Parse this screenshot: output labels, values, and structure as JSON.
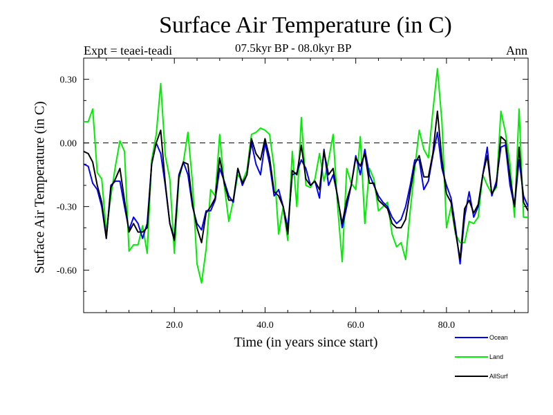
{
  "chart_data": {
    "type": "line",
    "title": "Surface Air Temperature (in C)",
    "subtitle": "07.5kyr BP - 08.0kyr BP",
    "expt_label": "Expt = teaei-teadi",
    "period_label": "Ann",
    "xlabel": "Time (in years since start)",
    "ylabel": "Surface Air Temperature (in C)",
    "xlim": [
      0,
      98
    ],
    "ylim": [
      -0.8,
      0.4
    ],
    "xticks": [
      20,
      40,
      60,
      80
    ],
    "xtick_labels": [
      "20.0",
      "40.0",
      "60.0",
      "80.0"
    ],
    "yticks": [
      0.3,
      0.0,
      -0.3,
      -0.6
    ],
    "ytick_labels": [
      "0.30",
      "0.00",
      "-0.30",
      "-0.60"
    ],
    "zero_line": 0.0,
    "x": [
      0,
      1,
      2,
      3,
      4,
      5,
      6,
      7,
      8,
      9,
      10,
      11,
      12,
      13,
      14,
      15,
      16,
      17,
      18,
      19,
      20,
      21,
      22,
      23,
      24,
      25,
      26,
      27,
      28,
      29,
      30,
      31,
      32,
      33,
      34,
      35,
      36,
      37,
      38,
      39,
      40,
      41,
      42,
      43,
      44,
      45,
      46,
      47,
      48,
      49,
      50,
      51,
      52,
      53,
      54,
      55,
      56,
      57,
      58,
      59,
      60,
      61,
      62,
      63,
      64,
      65,
      66,
      67,
      68,
      69,
      70,
      71,
      72,
      73,
      74,
      75,
      76,
      77,
      78,
      79,
      80,
      81,
      82,
      83,
      84,
      85,
      86,
      87,
      88,
      89,
      90,
      91,
      92,
      93,
      94,
      95,
      96,
      97,
      98
    ],
    "series": [
      {
        "name": "Ocean",
        "color": "#0000ff",
        "values": [
          -0.1,
          -0.11,
          -0.19,
          -0.22,
          -0.3,
          -0.45,
          -0.2,
          -0.18,
          -0.18,
          -0.3,
          -0.41,
          -0.35,
          -0.38,
          -0.45,
          -0.38,
          -0.1,
          0.0,
          -0.05,
          -0.2,
          -0.38,
          -0.45,
          -0.15,
          -0.09,
          -0.15,
          -0.3,
          -0.38,
          -0.41,
          -0.32,
          -0.32,
          -0.27,
          -0.12,
          -0.18,
          -0.25,
          -0.28,
          -0.12,
          -0.2,
          -0.15,
          0.0,
          -0.1,
          -0.15,
          0.0,
          -0.1,
          -0.25,
          -0.22,
          -0.3,
          -0.4,
          -0.15,
          -0.14,
          -0.08,
          -0.12,
          -0.2,
          -0.18,
          -0.26,
          -0.03,
          -0.2,
          -0.15,
          -0.25,
          -0.4,
          -0.3,
          -0.2,
          -0.06,
          -0.15,
          -0.03,
          -0.15,
          -0.2,
          -0.25,
          -0.28,
          -0.3,
          -0.35,
          -0.38,
          -0.36,
          -0.3,
          -0.2,
          -0.08,
          -0.08,
          -0.22,
          -0.18,
          -0.06,
          0.05,
          -0.12,
          -0.2,
          -0.26,
          -0.4,
          -0.57,
          -0.35,
          -0.23,
          -0.35,
          -0.3,
          -0.15,
          -0.02,
          -0.25,
          -0.18,
          -0.02,
          -0.01,
          -0.2,
          -0.3,
          -0.08,
          -0.25,
          -0.3
        ]
      },
      {
        "name": "Land",
        "color": "#00ee00",
        "values": [
          0.1,
          0.1,
          0.16,
          -0.14,
          -0.17,
          -0.42,
          -0.25,
          -0.11,
          0.01,
          -0.04,
          -0.51,
          -0.48,
          -0.48,
          -0.39,
          -0.52,
          -0.08,
          0.04,
          0.28,
          -0.06,
          -0.17,
          -0.52,
          -0.17,
          -0.09,
          0.05,
          -0.19,
          -0.57,
          -0.66,
          -0.5,
          -0.22,
          -0.25,
          0.04,
          -0.2,
          -0.37,
          -0.27,
          -0.15,
          -0.18,
          -0.13,
          0.04,
          0.05,
          0.07,
          0.06,
          0.04,
          -0.12,
          -0.43,
          -0.3,
          -0.46,
          -0.04,
          -0.3,
          0.12,
          -0.2,
          -0.21,
          -0.17,
          -0.05,
          -0.18,
          -0.08,
          0.04,
          -0.3,
          -0.56,
          -0.12,
          -0.19,
          -0.22,
          0.03,
          -0.38,
          -0.12,
          -0.17,
          -0.32,
          -0.3,
          -0.28,
          -0.43,
          -0.49,
          -0.47,
          -0.55,
          -0.32,
          -0.12,
          0.06,
          -0.03,
          -0.07,
          0.15,
          0.35,
          0.1,
          -0.4,
          -0.3,
          -0.43,
          -0.47,
          -0.47,
          -0.37,
          -0.38,
          -0.35,
          -0.15,
          -0.2,
          -0.24,
          -0.21,
          0.15,
          0.05,
          -0.1,
          -0.35,
          0.16,
          -0.35,
          -0.35
        ]
      },
      {
        "name": "AllSurf",
        "color": "#000000",
        "values": [
          -0.04,
          -0.05,
          -0.09,
          -0.2,
          -0.28,
          -0.45,
          -0.21,
          -0.17,
          -0.12,
          -0.27,
          -0.42,
          -0.38,
          -0.42,
          -0.42,
          -0.4,
          -0.1,
          0.0,
          0.06,
          -0.19,
          -0.38,
          -0.46,
          -0.16,
          -0.09,
          -0.1,
          -0.29,
          -0.4,
          -0.47,
          -0.33,
          -0.3,
          -0.26,
          -0.07,
          -0.19,
          -0.27,
          -0.27,
          -0.12,
          -0.19,
          -0.15,
          0.02,
          -0.05,
          -0.08,
          0.02,
          -0.07,
          -0.23,
          -0.25,
          -0.3,
          -0.43,
          -0.13,
          -0.15,
          -0.01,
          -0.17,
          -0.2,
          -0.18,
          -0.22,
          -0.04,
          -0.15,
          -0.12,
          -0.26,
          -0.38,
          -0.27,
          -0.2,
          -0.07,
          -0.11,
          -0.05,
          -0.19,
          -0.19,
          -0.27,
          -0.29,
          -0.31,
          -0.38,
          -0.4,
          -0.4,
          -0.36,
          -0.23,
          -0.1,
          -0.06,
          -0.16,
          -0.16,
          -0.05,
          0.15,
          -0.08,
          -0.24,
          -0.28,
          -0.42,
          -0.55,
          -0.31,
          -0.27,
          -0.33,
          -0.29,
          -0.15,
          -0.06,
          -0.24,
          -0.2,
          0.03,
          0.01,
          -0.16,
          -0.3,
          -0.02,
          -0.28,
          -0.32
        ]
      }
    ],
    "legend_position": "bottom-right"
  }
}
